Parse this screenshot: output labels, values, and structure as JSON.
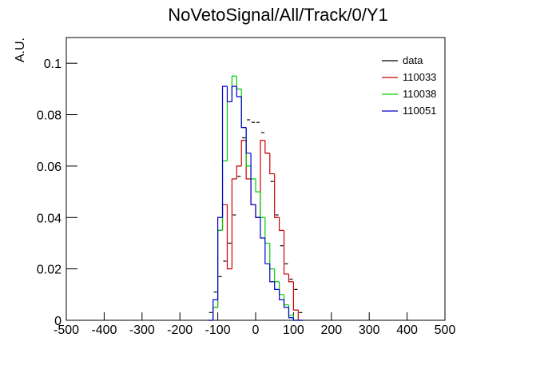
{
  "chart_data": {
    "type": "histogram",
    "title": "NoVetoSignal/All/Track/0/Y1",
    "y_label": "A.U.",
    "bins": [
      -125,
      -112.5,
      -100,
      -87.5,
      -75,
      -62.5,
      -50,
      -37.5,
      -25,
      -12.5,
      0,
      12.5,
      25,
      37.5,
      50,
      62.5,
      75,
      87.5,
      100,
      112.5,
      125
    ],
    "series": [
      {
        "name": "data",
        "color": "#000000",
        "style": "points",
        "values": [
          0.003,
          0.011,
          0.017,
          0.023,
          0.03,
          0.041,
          0.056,
          0.071,
          0.078,
          0.077,
          0.077,
          0.073,
          0.065,
          0.054,
          0.041,
          0.029,
          0.022,
          0.016,
          0.012,
          0.003
        ]
      },
      {
        "name": "110033",
        "color": "#cc0000",
        "style": "step",
        "values": [
          0,
          0.005,
          0.035,
          0.045,
          0.02,
          0.055,
          0.06,
          0.07,
          0.055,
          0.045,
          0.04,
          0.07,
          0.065,
          0.057,
          0.04,
          0.035,
          0.018,
          0.015,
          0.004,
          0
        ]
      },
      {
        "name": "110038",
        "color": "#00cc00",
        "style": "step",
        "values": [
          0,
          0.005,
          0.035,
          0.062,
          0.085,
          0.095,
          0.09,
          0.075,
          0.06,
          0.055,
          0.05,
          0.04,
          0.03,
          0.02,
          0.015,
          0.01,
          0.006,
          0.002,
          0,
          0
        ]
      },
      {
        "name": "110051",
        "color": "#0000cc",
        "style": "step",
        "values": [
          0,
          0.008,
          0.04,
          0.091,
          0.085,
          0.091,
          0.087,
          0.075,
          0.065,
          0.045,
          0.04,
          0.032,
          0.022,
          0.015,
          0.012,
          0.008,
          0.005,
          0.001,
          0,
          0
        ]
      }
    ],
    "xlim": [
      -500,
      500
    ],
    "xticks": [
      -500,
      -400,
      -300,
      -200,
      -100,
      0,
      100,
      200,
      300,
      400,
      500
    ],
    "ylim": [
      0,
      0.11
    ],
    "yticks": [
      0,
      0.02,
      0.04,
      0.06,
      0.08,
      0.1
    ],
    "legend": "upper right"
  }
}
